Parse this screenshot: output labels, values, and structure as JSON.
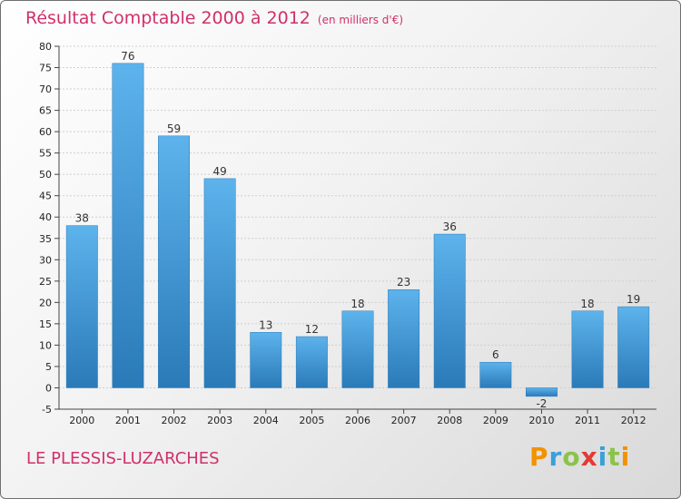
{
  "header": {
    "title": "Résultat Comptable 2000 à 2012",
    "subtitle": "(en milliers d'€)"
  },
  "footer": {
    "commune": "LE PLESSIS-LUZARCHES",
    "logo": "Proxiti",
    "logo_colors": [
      "#f39200",
      "#3aa0d8",
      "#8bc34a",
      "#e53935",
      "#3aa0d8",
      "#8bc34a",
      "#f39200"
    ]
  },
  "chart_data": {
    "type": "bar",
    "title": "Résultat Comptable 2000 à 2012",
    "subtitle": "(en milliers d'€)",
    "categories": [
      "2000",
      "2001",
      "2002",
      "2003",
      "2004",
      "2005",
      "2006",
      "2007",
      "2008",
      "2009",
      "2010",
      "2011",
      "2012"
    ],
    "values": [
      38,
      76,
      59,
      49,
      13,
      12,
      18,
      23,
      36,
      6,
      -2,
      18,
      19
    ],
    "ylim": [
      -5,
      80
    ],
    "yticks": [
      -5,
      0,
      5,
      10,
      15,
      20,
      25,
      30,
      35,
      40,
      45,
      50,
      55,
      60,
      65,
      70,
      75,
      80
    ],
    "grid": true,
    "legend": "none",
    "bar_color_top": "#5db3ec",
    "bar_color_bottom": "#2a7ab8"
  }
}
